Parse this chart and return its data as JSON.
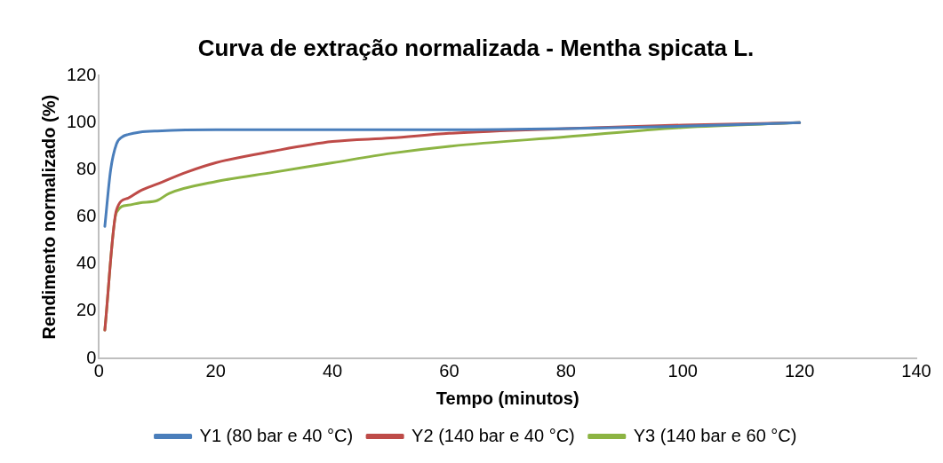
{
  "chart_data": {
    "type": "line",
    "title": "Curva de extração normalizada - Mentha spicata L.",
    "xlabel": "Tempo (minutos)",
    "ylabel": "Rendimento normalizado (%)",
    "xlim": [
      0,
      140
    ],
    "xticks": [
      0,
      20,
      40,
      60,
      80,
      100,
      120,
      140
    ],
    "ylim": [
      0,
      120
    ],
    "yticks": [
      0,
      20,
      40,
      60,
      80,
      100,
      120
    ],
    "grid": false,
    "legend": "bottom",
    "marker": "none",
    "line_style": "solid",
    "series": [
      {
        "name": "Y1 (80 bar e 40 °C)",
        "color": "#4a7ebb",
        "x": [
          1,
          2,
          3,
          4,
          5,
          7,
          10,
          20,
          40,
          60,
          80,
          100,
          120
        ],
        "values": [
          56,
          80,
          91,
          94,
          95,
          96,
          96.5,
          97,
          97,
          97,
          97.5,
          98.5,
          100
        ]
      },
      {
        "name": "Y2 (140 bar e 40 °C)",
        "color": "#be4b48",
        "x": [
          1,
          3,
          5,
          7,
          10,
          15,
          20,
          30,
          40,
          50,
          60,
          80,
          100,
          120
        ],
        "values": [
          12,
          63,
          68,
          71,
          74,
          79,
          83,
          88,
          92,
          93.5,
          95.5,
          97.5,
          99,
          100
        ]
      },
      {
        "name": "Y3 (140 bar e 60 °C)",
        "color": "#8cb443",
        "x": [
          1,
          3,
          5,
          7,
          10,
          12,
          20,
          30,
          40,
          50,
          60,
          80,
          100,
          120
        ],
        "values": [
          12,
          62,
          65,
          66,
          67,
          70,
          75,
          79,
          83,
          87,
          90,
          94,
          98,
          100
        ]
      }
    ]
  }
}
